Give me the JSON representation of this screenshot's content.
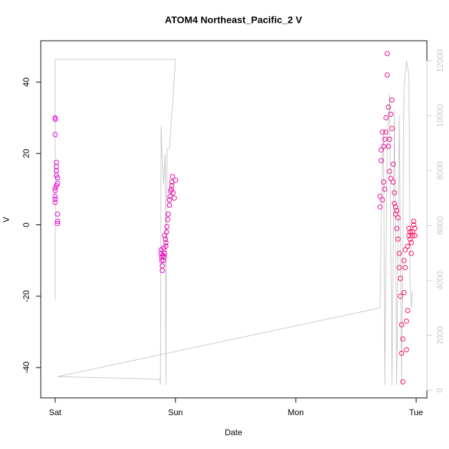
{
  "chart_data": {
    "type": "scatter",
    "title": "ATOM4 Northeast_Pacific_2 V",
    "xlabel": "Date",
    "ylabel": "V",
    "xlim": [
      -0.12,
      3.09
    ],
    "xticks": [
      {
        "value": 0,
        "label": "Sat"
      },
      {
        "value": 1,
        "label": "Sun"
      },
      {
        "value": 2,
        "label": "Mon"
      },
      {
        "value": 3,
        "label": "Tue"
      }
    ],
    "ylim": [
      -48.5,
      51.6
    ],
    "yticks": [
      -40,
      -20,
      0,
      20,
      40
    ],
    "y2lim": [
      -277,
      12730
    ],
    "y2ticks": [
      0,
      2000,
      4000,
      6000,
      8000,
      10000,
      12000
    ],
    "y2color": "#c8c8c8",
    "series": [
      {
        "style": "points",
        "color_gradient": [
          "#e000e0",
          "#ff0a50"
        ],
        "x": [
          0.0,
          0.0,
          0.0,
          0.01,
          0.01,
          0.01,
          0.01,
          0.02,
          0.02,
          0.01,
          0.0,
          0.0,
          0.0,
          0.0,
          0.0,
          0.02,
          0.02,
          0.02,
          0.88,
          0.88,
          0.885,
          0.885,
          0.89,
          0.89,
          0.895,
          0.9,
          0.9,
          0.905,
          0.91,
          0.91,
          0.915,
          0.92,
          0.92,
          0.925,
          0.93,
          0.935,
          0.94,
          0.95,
          0.95,
          0.955,
          0.96,
          0.965,
          0.97,
          0.97,
          0.975,
          0.98,
          0.99,
          1.0,
          2.7,
          2.7,
          2.71,
          2.71,
          2.72,
          2.72,
          2.73,
          2.73,
          2.74,
          2.74,
          2.75,
          2.75,
          2.76,
          2.76,
          2.77,
          2.77,
          2.78,
          2.78,
          2.79,
          2.79,
          2.8,
          2.8,
          2.81,
          2.81,
          2.82,
          2.82,
          2.83,
          2.83,
          2.84,
          2.84,
          2.85,
          2.85,
          2.86,
          2.86,
          2.87,
          2.87,
          2.88,
          2.88,
          2.89,
          2.89,
          2.9,
          2.9,
          2.91,
          2.91,
          2.92,
          2.92,
          2.93,
          2.93,
          2.94,
          2.94,
          2.95,
          2.95,
          2.96,
          2.96,
          2.97,
          2.97,
          2.98,
          2.98,
          2.99,
          2.99
        ],
        "values": [
          30,
          29.6,
          25.3,
          17.5,
          16.3,
          15.2,
          13.9,
          13.2,
          11.6,
          11,
          10.3,
          9.6,
          8,
          7.2,
          6.3,
          3,
          1,
          0.4,
          -7,
          -8,
          -9,
          -10,
          -12.8,
          -11.5,
          -8.5,
          -10,
          -6.5,
          -9,
          -8,
          -3,
          -4,
          -5,
          -6,
          -2,
          -0.5,
          1.5,
          3,
          5.5,
          7,
          8,
          9.5,
          10,
          11,
          12,
          13.5,
          9,
          7.5,
          12.5,
          5,
          8,
          18,
          21,
          26,
          7,
          22,
          12,
          24,
          10,
          26,
          30,
          48,
          42,
          33,
          22,
          15,
          24,
          13,
          31,
          35,
          27,
          17,
          12,
          9,
          6,
          5,
          3,
          -1,
          4,
          2,
          -4,
          -8,
          -12,
          -15,
          -20,
          -28,
          -36,
          -44,
          -32,
          -19,
          -10,
          -7,
          -12,
          -27,
          -35,
          -24,
          -6,
          -3,
          -1,
          -2,
          -4,
          -5,
          -8,
          -3,
          -2,
          0,
          1,
          -3,
          -1
        ]
      },
      {
        "style": "line",
        "axis": "y2",
        "color": "#c8c8c8",
        "x": [
          0.0,
          0.0,
          1.0,
          0.98,
          0.96,
          0.95,
          0.93,
          0.92,
          0.915,
          0.9,
          0.88,
          0.875,
          0.87,
          0.02,
          2.7,
          2.72,
          2.73,
          2.74,
          2.76,
          2.78,
          2.8,
          2.82,
          2.84,
          2.86,
          2.88,
          2.9,
          2.92,
          2.94,
          2.95,
          2.96,
          2.97
        ],
        "values": [
          3300,
          12050,
          12050,
          10700,
          9500,
          8800,
          8800,
          200,
          8600,
          7500,
          9600,
          200,
          400,
          500,
          3000,
          8500,
          9400,
          200,
          9000,
          10800,
          200,
          10200,
          200,
          10000,
          200,
          11000,
          12000,
          11500,
          4000,
          3000,
          3600
        ]
      }
    ]
  }
}
